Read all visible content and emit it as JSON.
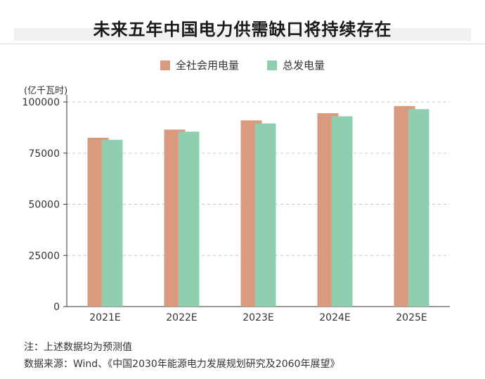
{
  "chart_data": {
    "type": "bar",
    "title": "未来五年中国电力供需缺口将持续存在",
    "unit_label": "(亿千瓦时)",
    "categories": [
      "2021E",
      "2022E",
      "2023E",
      "2024E",
      "2025E"
    ],
    "series": [
      {
        "name": "全社会用电量",
        "values": [
          82500,
          86500,
          91000,
          94500,
          98000
        ],
        "color": "#d99a7e"
      },
      {
        "name": "总发电量",
        "values": [
          81500,
          85500,
          89500,
          93000,
          96500
        ],
        "color": "#8fcfb0"
      }
    ],
    "yticks": [
      "100000",
      "75000",
      "50000",
      "25000",
      "0"
    ],
    "ylim": [
      0,
      100000
    ],
    "grid": "dashed-horizontal",
    "legend_position": "top-center"
  },
  "footer": {
    "note": "注：上述数据均为预测值",
    "source": "数据来源：Wind、《中国2030年能源电力发展规划研究及2060年展望》"
  }
}
